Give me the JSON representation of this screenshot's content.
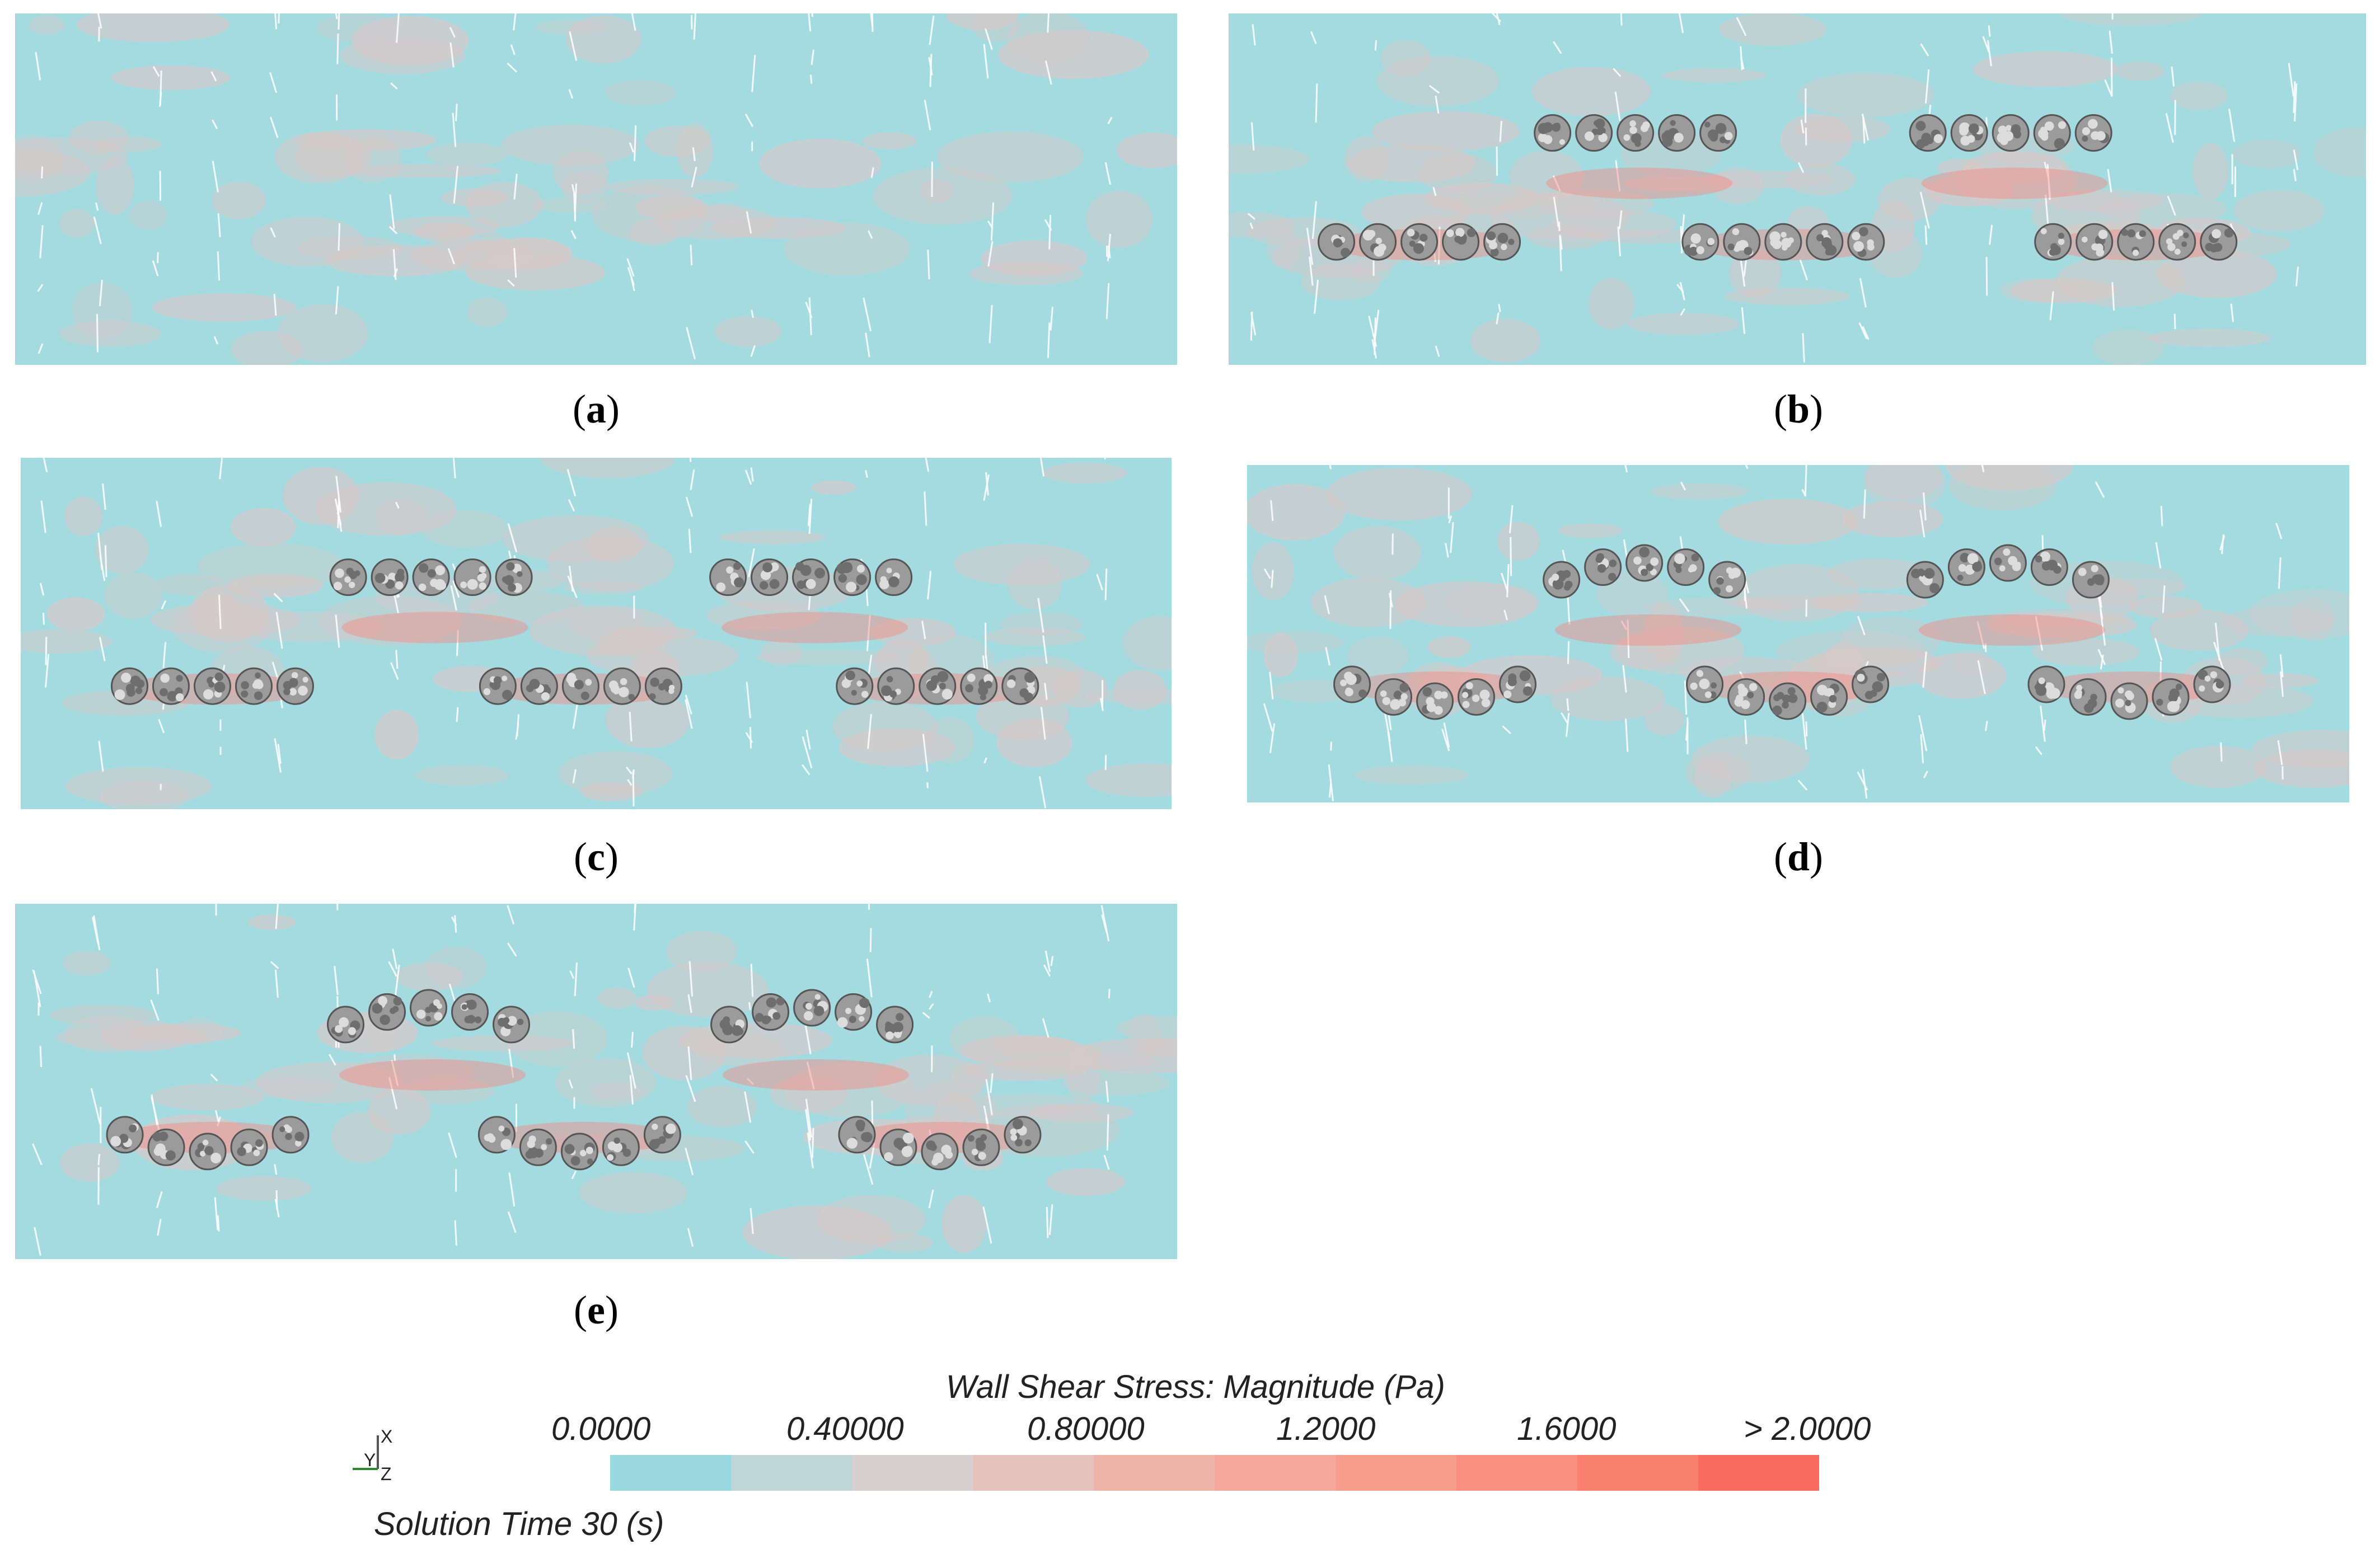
{
  "panels": [
    {
      "id": "a",
      "label": "a",
      "rows": []
    },
    {
      "id": "b",
      "label": "b",
      "rows": [
        {
          "kind": "straight",
          "level": "top",
          "groups": 2
        },
        {
          "kind": "straight",
          "level": "bottom",
          "groups": 3
        }
      ]
    },
    {
      "id": "c",
      "label": "c",
      "rows": [
        {
          "kind": "straight",
          "level": "top",
          "groups": 2
        },
        {
          "kind": "straight",
          "level": "bottom",
          "groups": 3
        }
      ]
    },
    {
      "id": "d",
      "label": "d",
      "rows": [
        {
          "kind": "arc",
          "level": "top",
          "groups": 2
        },
        {
          "kind": "arc",
          "level": "bottom",
          "groups": 3
        }
      ]
    },
    {
      "id": "e",
      "label": "e",
      "rows": [
        {
          "kind": "arc",
          "level": "top",
          "groups": 2
        },
        {
          "kind": "arc",
          "level": "bottom",
          "groups": 3
        }
      ]
    }
  ],
  "legend": {
    "title": "Wall Shear Stress: Magnitude (Pa)",
    "ticks": [
      "0.0000",
      "0.40000",
      "0.80000",
      "1.2000",
      "1.6000",
      "> 2.0000"
    ],
    "colors": [
      "#98d8de",
      "#bfd6d8",
      "#d8cfd0",
      "#e6c2bd",
      "#efb5ab",
      "#f5a89b",
      "#f89c8c",
      "#f98f7e",
      "#f97f6f",
      "#f96b60"
    ],
    "solution_time": "Solution Time 30 (s)",
    "axis_labels": {
      "x": "X",
      "y": "Y",
      "z": "Z"
    }
  },
  "colors": {
    "background": "#a3dbe0",
    "mottle": "#d7c9c9",
    "hotspot": "#f48a80",
    "vector": "#ffffff",
    "particle": "#9b9b9b"
  }
}
